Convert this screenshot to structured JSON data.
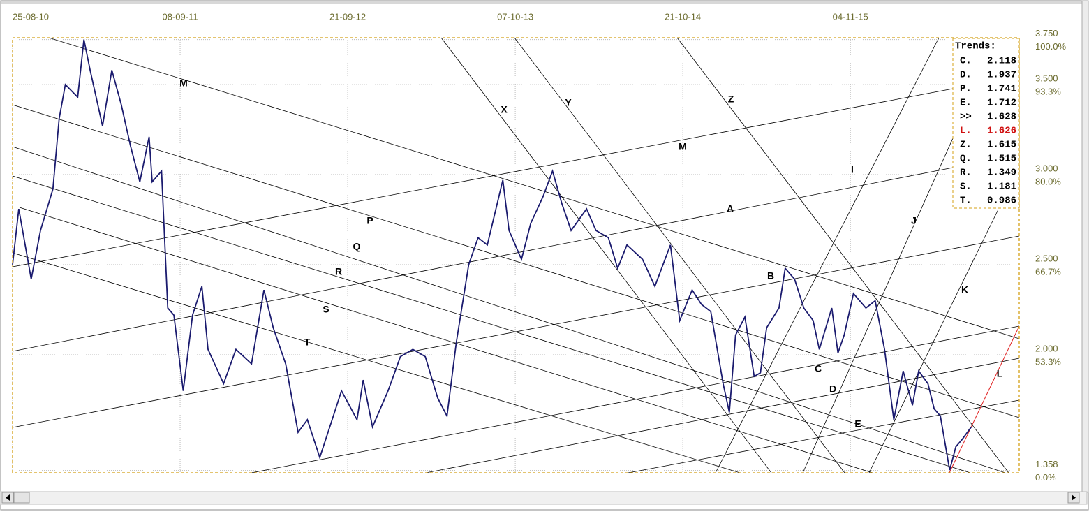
{
  "chart_data": {
    "type": "line",
    "xticks": [
      {
        "value": 0,
        "label": "25-08-10"
      },
      {
        "value": 54,
        "label": "08-09-11"
      },
      {
        "value": 108,
        "label": "21-09-12"
      },
      {
        "value": 162,
        "label": "07-10-13"
      },
      {
        "value": 216,
        "label": "21-10-14"
      },
      {
        "value": 270,
        "label": "04-11-15"
      }
    ],
    "xlim": [
      0,
      324.4
    ],
    "ylim": [
      1.345,
      3.76
    ],
    "yticks": [
      {
        "value": 3.75,
        "label": "3.750"
      },
      {
        "value": 3.5,
        "label": "3.500"
      },
      {
        "value": 3,
        "label": "3.000"
      },
      {
        "value": 2.5,
        "label": "2.500"
      },
      {
        "value": 2,
        "label": "2.000"
      },
      1.358
    ],
    "y2ticks": [
      {
        "value": 100,
        "label": "100.0%"
      },
      {
        "value": 93.3,
        "label": "93.3%"
      },
      {
        "value": 80,
        "label": "80.0%"
      },
      {
        "value": 66.7,
        "label": "66.7%"
      },
      {
        "value": 53.3,
        "label": "53.3%"
      },
      {
        "value": 0,
        "label": "0.0%"
      }
    ],
    "grid": true,
    "series": [
      {
        "color": "#1a1a6e",
        "x": [
          0,
          2,
          6,
          9,
          13,
          15,
          17,
          21,
          23,
          25,
          29,
          32,
          35,
          38,
          41,
          44,
          45,
          48,
          50,
          52,
          55,
          58,
          61,
          63,
          68,
          72,
          77,
          81,
          84,
          88,
          92,
          95,
          99,
          103,
          106,
          111,
          113,
          116,
          121,
          125,
          129,
          133,
          137,
          140,
          143,
          147,
          150,
          153,
          158,
          160,
          164,
          167,
          171,
          174,
          177,
          180,
          185,
          188,
          192,
          195,
          198,
          203,
          207,
          212,
          215,
          219,
          222,
          225,
          229,
          231,
          233,
          236,
          239,
          241,
          243,
          247,
          249,
          252,
          255,
          258,
          260,
          264,
          266,
          268,
          271,
          275,
          278,
          281,
          284,
          287,
          290,
          292,
          295,
          297,
          299,
          302,
          304,
          306,
          309
        ],
        "values": [
          2.5,
          2.81,
          2.42,
          2.69,
          2.92,
          3.31,
          3.5,
          3.43,
          3.75,
          3.58,
          3.27,
          3.58,
          3.39,
          3.16,
          2.96,
          3.21,
          2.96,
          3.02,
          2.26,
          2.22,
          1.8,
          2.22,
          2.38,
          2.03,
          1.84,
          2.03,
          1.95,
          2.36,
          2.15,
          1.95,
          1.57,
          1.64,
          1.43,
          1.64,
          1.8,
          1.64,
          1.86,
          1.6,
          1.8,
          1.99,
          2.03,
          1.99,
          1.76,
          1.66,
          2.07,
          2.5,
          2.65,
          2.61,
          2.97,
          2.69,
          2.53,
          2.73,
          2.88,
          3.02,
          2.84,
          2.69,
          2.81,
          2.69,
          2.65,
          2.48,
          2.61,
          2.53,
          2.38,
          2.61,
          2.19,
          2.36,
          2.28,
          2.24,
          1.84,
          1.68,
          2.11,
          2.21,
          1.88,
          1.9,
          2.15,
          2.26,
          2.48,
          2.42,
          2.26,
          2.19,
          2.03,
          2.26,
          2.01,
          2.11,
          2.34,
          2.26,
          2.3,
          2.03,
          1.64,
          1.91,
          1.72,
          1.91,
          1.84,
          1.7,
          1.66,
          1.36,
          1.49,
          1.53,
          1.6
        ]
      }
    ],
    "trend_labels": [
      "M",
      "X",
      "Y",
      "Z",
      "M",
      "I",
      "P",
      "Q",
      "A",
      "J",
      "R",
      "B",
      "K",
      "S",
      "C",
      "T",
      "D",
      "E",
      "L"
    ],
    "trends": {
      "title": "Trends:",
      "items": [
        {
          "label": "C.",
          "value": 2.118
        },
        {
          "label": "D.",
          "value": 1.937
        },
        {
          "label": "P.",
          "value": 1.741
        },
        {
          "label": "E.",
          "value": 1.712
        },
        {
          "label": ">>",
          "value": 1.628
        },
        {
          "label": "L.",
          "value": 1.626,
          "color": "#d01010"
        },
        {
          "label": "Z.",
          "value": 1.615
        },
        {
          "label": "Q.",
          "value": 1.515
        },
        {
          "label": "R.",
          "value": 1.349
        },
        {
          "label": "S.",
          "value": 1.181
        },
        {
          "label": "T.",
          "value": 0.986
        }
      ]
    }
  }
}
